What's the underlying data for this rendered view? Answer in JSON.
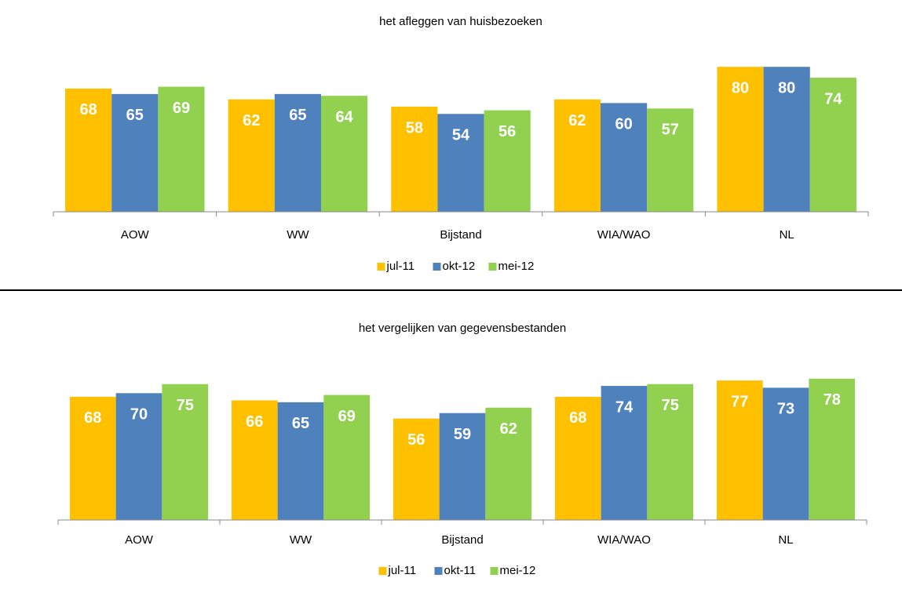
{
  "chart_data": [
    {
      "type": "bar",
      "title": "het afleggen van huisbezoeken",
      "categories": [
        "AOW",
        "WW",
        "Bijstand",
        "WIA/WAO",
        "NL"
      ],
      "series": [
        {
          "name": "jul-11",
          "color": "#FFC000",
          "values": [
            68,
            62,
            58,
            62,
            80
          ]
        },
        {
          "name": "okt-12",
          "color": "#4F81BD",
          "values": [
            65,
            65,
            54,
            60,
            80
          ]
        },
        {
          "name": "mei-12",
          "color": "#92D050",
          "values": [
            69,
            64,
            56,
            57,
            74
          ]
        }
      ],
      "ylim": [
        0,
        100
      ],
      "legend": "bottom"
    },
    {
      "type": "bar",
      "title": "het vergelijken van gegevensbestanden",
      "categories": [
        "AOW",
        "WW",
        "Bijstand",
        "WIA/WAO",
        "NL"
      ],
      "series": [
        {
          "name": "jul-11",
          "color": "#FFC000",
          "values": [
            68,
            66,
            56,
            68,
            77
          ]
        },
        {
          "name": "okt-11",
          "color": "#4F81BD",
          "values": [
            70,
            65,
            59,
            74,
            73
          ]
        },
        {
          "name": "mei-12",
          "color": "#92D050",
          "values": [
            75,
            69,
            62,
            75,
            78
          ]
        }
      ],
      "ylim": [
        0,
        100
      ],
      "legend": "bottom"
    }
  ]
}
